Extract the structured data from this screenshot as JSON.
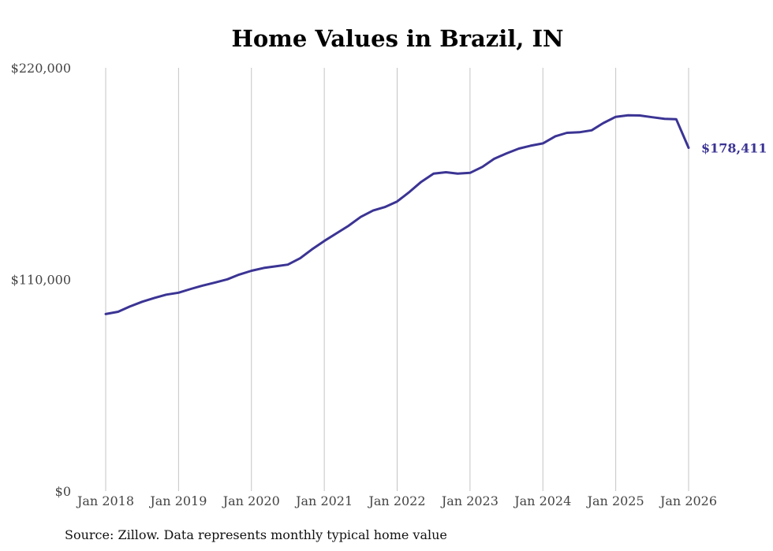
{
  "chart_data": {
    "type": "line",
    "title": "Home Values in Brazil, IN",
    "source": "Source: Zillow. Data represents monthly typical home value",
    "xlabel": "",
    "ylabel": "",
    "ylim": [
      0,
      220000
    ],
    "y_ticks": [
      {
        "value": 0,
        "label": "$0"
      },
      {
        "value": 110000,
        "label": "$110,000"
      },
      {
        "value": 220000,
        "label": "$220,000"
      }
    ],
    "x_range": [
      2018.0,
      2026.0
    ],
    "x_ticks": [
      {
        "value": 2018,
        "label": "Jan 2018"
      },
      {
        "value": 2019,
        "label": "Jan 2019"
      },
      {
        "value": 2020,
        "label": "Jan 2020"
      },
      {
        "value": 2021,
        "label": "Jan 2021"
      },
      {
        "value": 2022,
        "label": "Jan 2022"
      },
      {
        "value": 2023,
        "label": "Jan 2023"
      },
      {
        "value": 2024,
        "label": "Jan 2024"
      },
      {
        "value": 2025,
        "label": "Jan 2025"
      },
      {
        "value": 2026,
        "label": "Jan 2026"
      }
    ],
    "grid": "vertical",
    "series": [
      {
        "name": "Typical home value",
        "color": "#3b3494",
        "end_label": "$178,411",
        "x": [
          2018.0,
          2018.17,
          2018.33,
          2018.5,
          2018.67,
          2018.83,
          2019.0,
          2019.17,
          2019.33,
          2019.5,
          2019.67,
          2019.83,
          2020.0,
          2020.17,
          2020.33,
          2020.5,
          2020.67,
          2020.83,
          2021.0,
          2021.17,
          2021.33,
          2021.5,
          2021.67,
          2021.83,
          2022.0,
          2022.17,
          2022.33,
          2022.5,
          2022.67,
          2022.83,
          2023.0,
          2023.17,
          2023.33,
          2023.5,
          2023.67,
          2023.83,
          2024.0,
          2024.17,
          2024.33,
          2024.5,
          2024.67,
          2024.83,
          2025.0,
          2025.17,
          2025.33,
          2025.5,
          2025.67,
          2025.83,
          2026.0
        ],
        "values": [
          92000,
          93200,
          95900,
          98400,
          100400,
          102100,
          103100,
          105100,
          106800,
          108400,
          110100,
          112500,
          114500,
          116000,
          116800,
          117700,
          121000,
          125600,
          130000,
          134000,
          137800,
          142500,
          145800,
          147600,
          150500,
          155500,
          160700,
          165000,
          165700,
          165000,
          165400,
          168500,
          172700,
          175500,
          178000,
          179500,
          180700,
          184400,
          186200,
          186500,
          187500,
          191300,
          194500,
          195300,
          195200,
          194300,
          193500,
          193300,
          178411
        ]
      }
    ]
  }
}
